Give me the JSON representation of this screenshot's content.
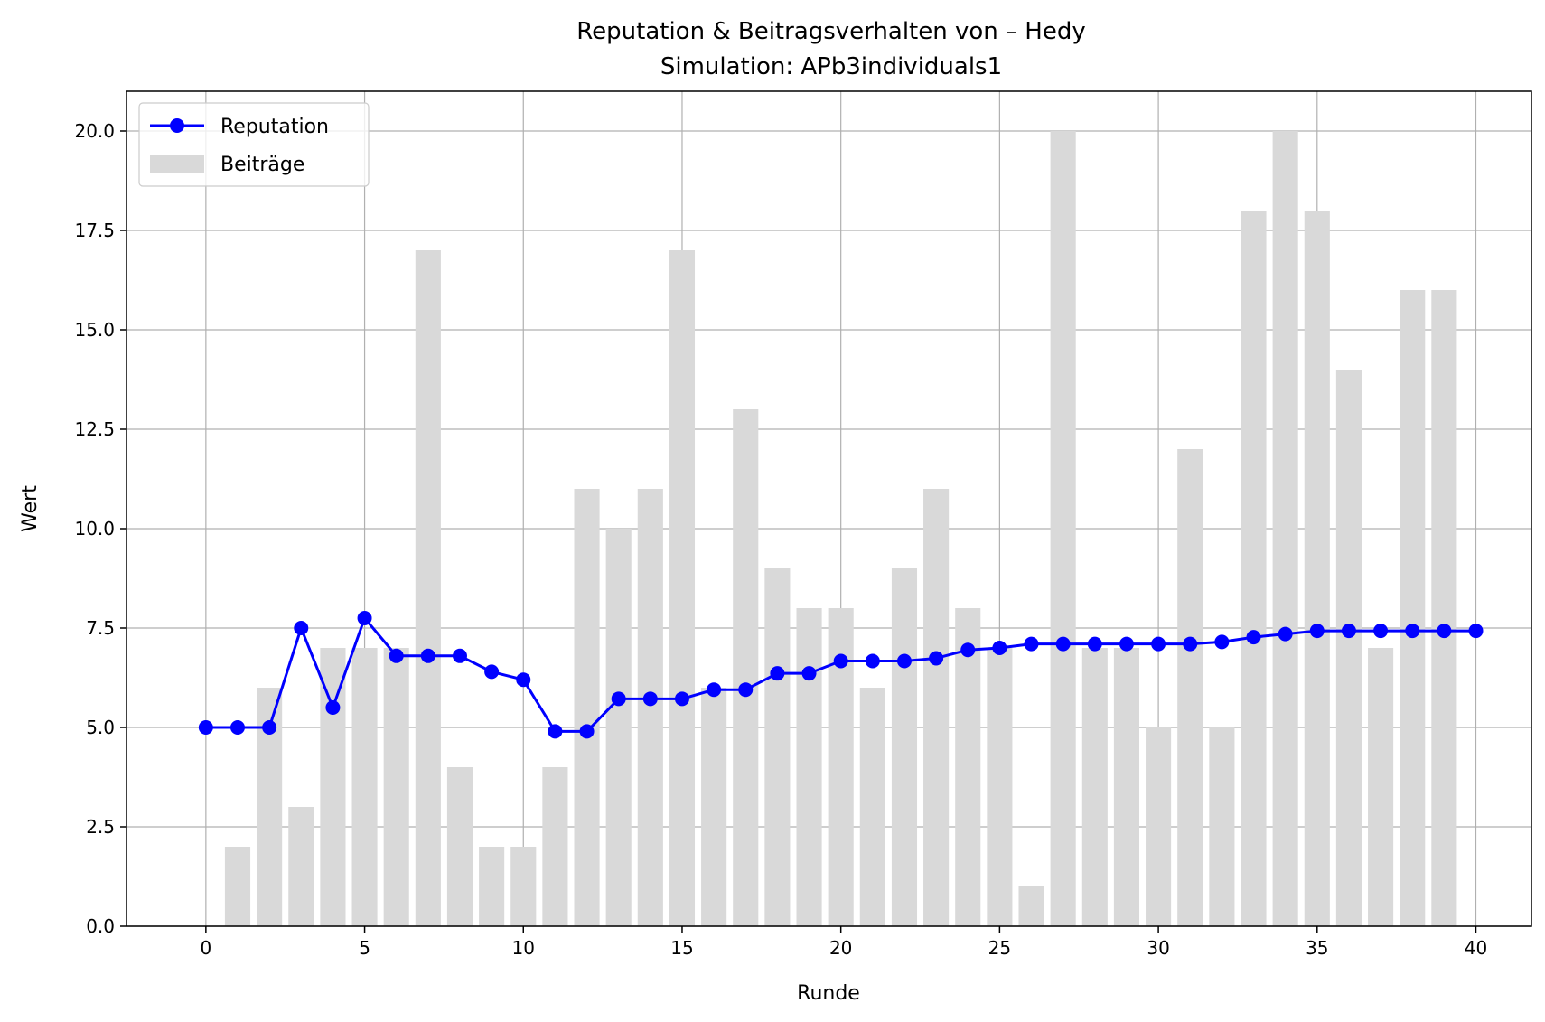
{
  "chart_data": {
    "type": "bar",
    "title": "Reputation & Beitragsverhalten von – Hedy",
    "subtitle": "Simulation: APb3individuals1",
    "xlabel": "Runde",
    "ylabel": "Wert",
    "xlim": [
      -2.5,
      41.75
    ],
    "ylim": [
      0,
      21
    ],
    "x_ticks": [
      0,
      5,
      10,
      15,
      20,
      25,
      30,
      35,
      40
    ],
    "y_ticks": [
      0,
      2.5,
      5,
      7.5,
      10,
      12.5,
      15,
      17.5,
      20
    ],
    "x_tick_labels": [
      "0",
      "5",
      "10",
      "15",
      "20",
      "25",
      "30",
      "35",
      "40"
    ],
    "y_tick_labels": [
      "0.0",
      "2.5",
      "5.0",
      "7.5",
      "10.0",
      "12.5",
      "15.0",
      "17.5",
      "20.0"
    ],
    "grid": true,
    "legend_position": "top-left",
    "series": [
      {
        "name": "Reputation",
        "type": "line",
        "color": "#0000ff",
        "x": [
          0,
          1,
          2,
          3,
          4,
          5,
          6,
          7,
          8,
          9,
          10,
          11,
          12,
          13,
          14,
          15,
          16,
          17,
          18,
          19,
          20,
          21,
          22,
          23,
          24,
          25,
          26,
          27,
          28,
          29,
          30,
          31,
          32,
          33,
          34,
          35,
          36,
          37,
          38,
          39,
          40
        ],
        "values": [
          5.0,
          5.0,
          5.0,
          7.5,
          5.5,
          7.75,
          6.8,
          6.8,
          6.8,
          6.4,
          6.2,
          4.9,
          4.9,
          5.72,
          5.72,
          5.72,
          5.95,
          5.95,
          6.36,
          6.36,
          6.67,
          6.67,
          6.67,
          6.74,
          6.95,
          7.0,
          7.1,
          7.1,
          7.1,
          7.1,
          7.1,
          7.1,
          7.15,
          7.27,
          7.35,
          7.43,
          7.43,
          7.43,
          7.43,
          7.43,
          7.43
        ]
      },
      {
        "name": "Beiträge",
        "type": "bar",
        "color": "#d9d9d9",
        "x": [
          1,
          2,
          3,
          4,
          5,
          6,
          7,
          8,
          9,
          10,
          11,
          12,
          13,
          14,
          15,
          16,
          17,
          18,
          19,
          20,
          21,
          22,
          23,
          24,
          25,
          26,
          27,
          28,
          29,
          30,
          31,
          32,
          33,
          34,
          35,
          36,
          37,
          38,
          39
        ],
        "values": [
          2,
          6,
          3,
          7,
          7,
          7,
          17,
          4,
          2,
          2,
          4,
          11,
          10,
          11,
          17,
          6,
          13,
          9,
          8,
          8,
          6,
          9,
          11,
          8,
          7,
          1,
          20,
          7,
          7,
          5,
          12,
          5,
          18,
          20,
          18,
          14,
          7,
          16,
          16
        ]
      }
    ]
  }
}
